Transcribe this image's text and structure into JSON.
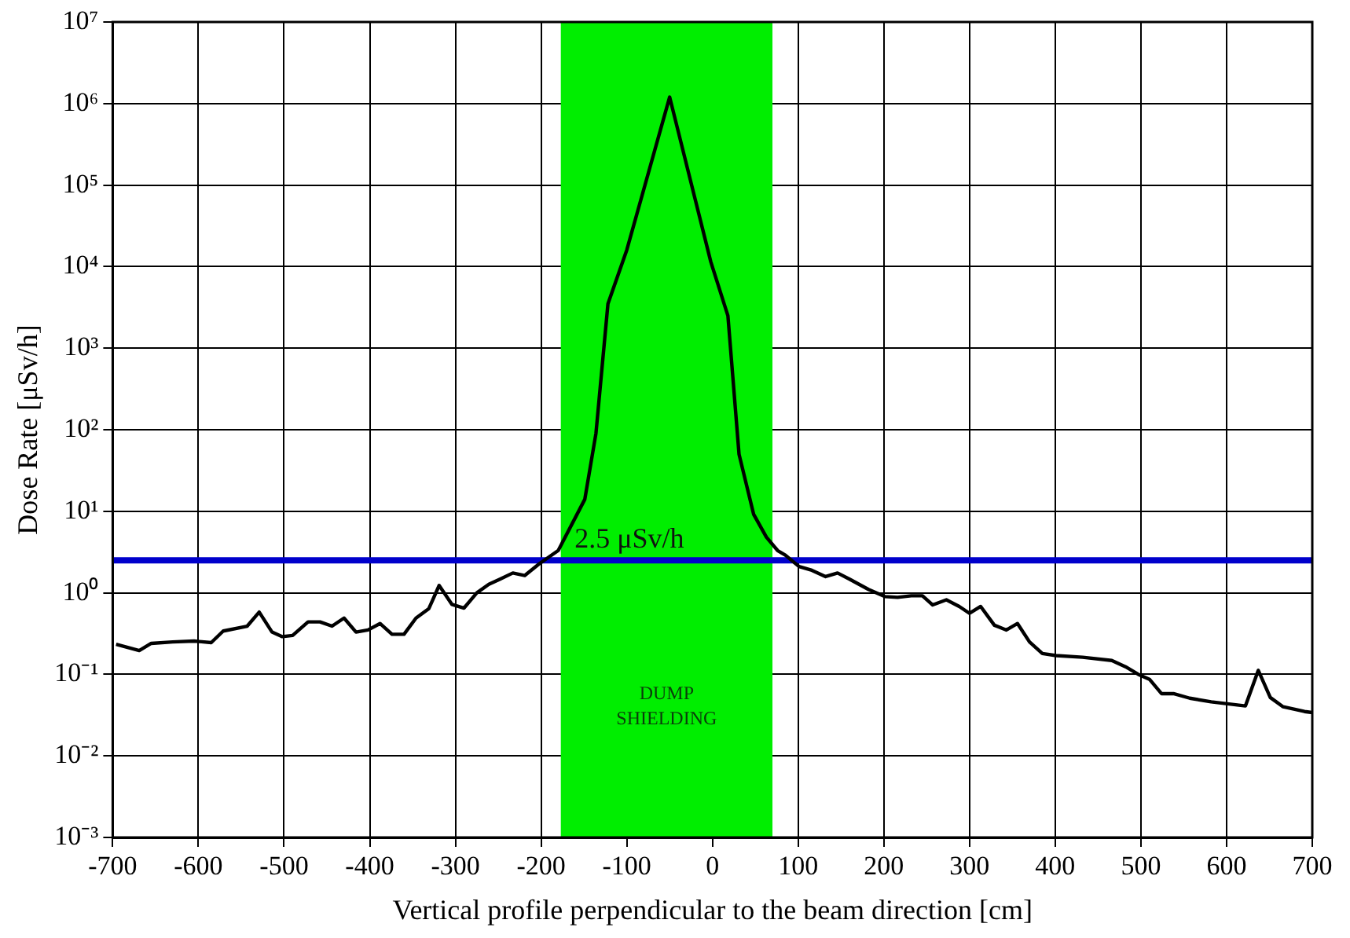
{
  "chart_data": {
    "type": "line",
    "xlabel": "Vertical profile perpendicular to the beam direction [cm]",
    "ylabel": "Dose Rate [μSv/h]",
    "log": "y",
    "grid": true,
    "marker": "none",
    "line_style": "solid",
    "xlim": [
      -700,
      700
    ],
    "xticks": [
      -700,
      -600,
      -500,
      -400,
      -300,
      -200,
      -100,
      0,
      100,
      200,
      300,
      400,
      500,
      600,
      700
    ],
    "ylim": [
      0.001,
      10000000
    ],
    "yticks": [
      {
        "value": 0.001,
        "label": "10⁻³"
      },
      {
        "value": 0.01,
        "label": "10⁻²"
      },
      {
        "value": 0.1,
        "label": "10⁻¹"
      },
      {
        "value": 1,
        "label": "10⁰"
      },
      {
        "value": 10,
        "label": "10¹"
      },
      {
        "value": 100,
        "label": "10²"
      },
      {
        "value": 1000,
        "label": "10³"
      },
      {
        "value": 10000,
        "label": "10⁴"
      },
      {
        "value": 100000,
        "label": "10⁵"
      },
      {
        "value": 1000000,
        "label": "10⁶"
      },
      {
        "value": 10000000,
        "label": "10⁷"
      }
    ],
    "bands": [
      {
        "axis": "x",
        "from": -177,
        "to": 70,
        "label": "DUMP SHIELDING",
        "color": "#00ee00"
      }
    ],
    "ref_lines": [
      {
        "axis": "y",
        "value": 2.5,
        "label": "2.5 μSv/h",
        "color": "#0000cc"
      }
    ],
    "series": [
      {
        "color": "#000000",
        "x": [
          -696,
          -669,
          -655,
          -630,
          -605,
          -585,
          -571,
          -543,
          -529,
          -514,
          -502,
          -490,
          -472,
          -458,
          -444,
          -430,
          -416,
          -402,
          -388,
          -374,
          -360,
          -346,
          -331,
          -319,
          -304,
          -290,
          -275,
          -261,
          -248,
          -233,
          -219,
          -202,
          -180,
          -149,
          -136,
          -122,
          -100,
          -50,
          -2,
          18,
          31,
          48,
          63,
          76,
          85,
          101,
          116,
          132,
          146,
          160,
          182,
          201,
          216,
          232,
          245,
          257,
          273,
          288,
          300,
          313,
          329,
          343,
          356,
          370,
          385,
          401,
          432,
          466,
          482,
          497,
          510,
          524,
          538,
          557,
          582,
          622,
          637,
          651,
          666,
          691,
          700
        ],
        "values": [
          0.234,
          0.196,
          0.24,
          0.25,
          0.256,
          0.245,
          0.34,
          0.39,
          0.58,
          0.33,
          0.29,
          0.3,
          0.44,
          0.44,
          0.39,
          0.49,
          0.33,
          0.35,
          0.42,
          0.31,
          0.31,
          0.49,
          0.64,
          1.23,
          0.72,
          0.65,
          1.0,
          1.27,
          1.47,
          1.75,
          1.63,
          2.28,
          3.3,
          14,
          90,
          3500,
          16000,
          1200000,
          11500,
          2500,
          50,
          9.2,
          4.8,
          3.3,
          2.9,
          2.1,
          1.89,
          1.58,
          1.75,
          1.47,
          1.1,
          0.9,
          0.88,
          0.92,
          0.92,
          0.71,
          0.82,
          0.68,
          0.56,
          0.68,
          0.4,
          0.35,
          0.42,
          0.25,
          0.18,
          0.17,
          0.162,
          0.148,
          0.124,
          0.1,
          0.087,
          0.058,
          0.058,
          0.051,
          0.046,
          0.041,
          0.112,
          0.052,
          0.04,
          0.035,
          0.034
        ]
      }
    ]
  }
}
